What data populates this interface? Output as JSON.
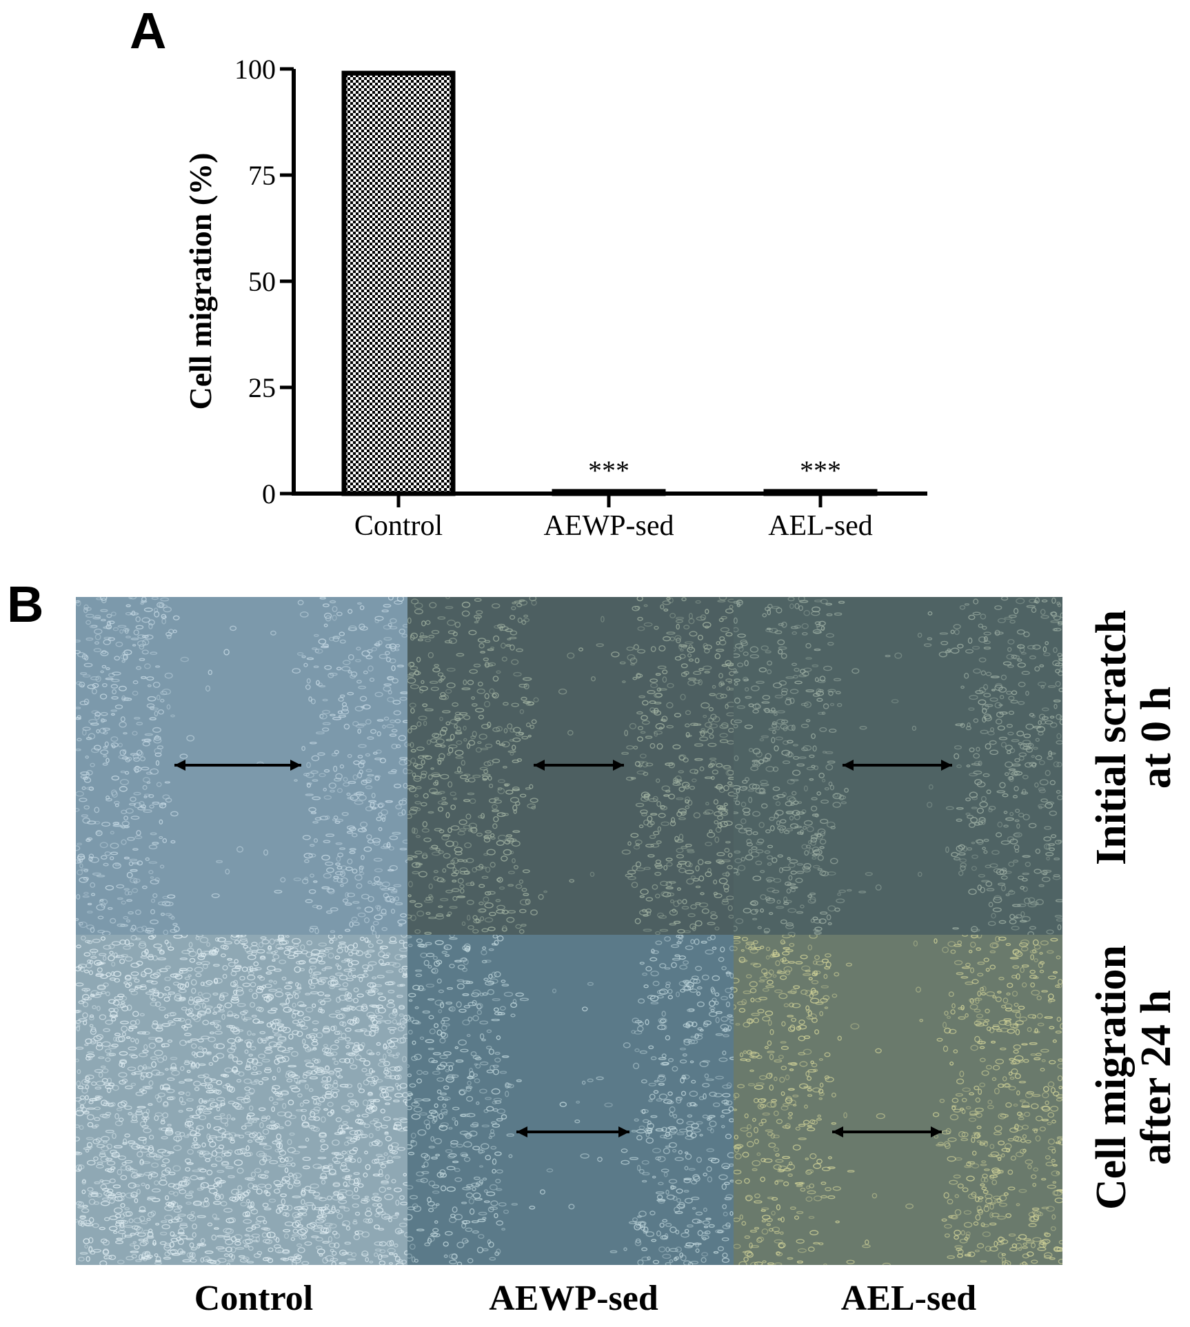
{
  "panel_a": {
    "letter": "A"
  },
  "panel_b": {
    "letter": "B",
    "columns": [
      "Control",
      "AEWP-sed",
      "AEL-sed"
    ],
    "rows": [
      {
        "line1": "Initial scratch",
        "line2": "at 0 h"
      },
      {
        "line1": "Cell migration",
        "line2": "after 24 h"
      }
    ],
    "cells": [
      {
        "row": 0,
        "col": 0,
        "bg": "#7c99ab",
        "cells_tint": "#c8dbe6",
        "gap": true,
        "arrow": true
      },
      {
        "row": 0,
        "col": 1,
        "bg": "#4d5f61",
        "cells_tint": "#a6b7a5",
        "gap": true,
        "arrow": true
      },
      {
        "row": 0,
        "col": 2,
        "bg": "#4f6364",
        "cells_tint": "#a2b3a7",
        "gap": true,
        "arrow": true
      },
      {
        "row": 1,
        "col": 0,
        "bg": "#8fa8b4",
        "cells_tint": "#e3f0f5",
        "gap": false,
        "arrow": false
      },
      {
        "row": 1,
        "col": 1,
        "bg": "#5b7a89",
        "cells_tint": "#c5dbe0",
        "gap": true,
        "arrow": true
      },
      {
        "row": 1,
        "col": 2,
        "bg": "#6a7a6c",
        "cells_tint": "#d6d79a",
        "gap": true,
        "arrow": true
      }
    ]
  },
  "chart_data": {
    "type": "bar",
    "categories": [
      "Control",
      "AEWP-sed",
      "AEL-sed"
    ],
    "values": [
      99,
      0.5,
      0.5
    ],
    "annotations": [
      "",
      "***",
      "***"
    ],
    "ylabel": "Cell migration (%)",
    "xlabel": "",
    "ylim": [
      0,
      100
    ],
    "yticks": [
      0,
      25,
      50,
      75,
      100
    ],
    "fill_pattern": "checkered",
    "bar_color": "#000000"
  }
}
